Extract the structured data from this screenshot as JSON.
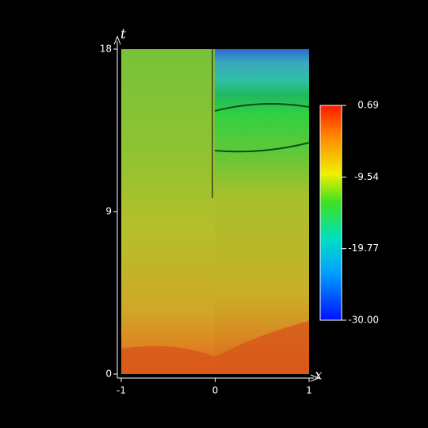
{
  "chart_data": {
    "type": "heatmap",
    "xlabel": "x",
    "ylabel": "t",
    "xlim": [
      -1,
      1
    ],
    "xticks": [
      -1,
      0,
      1
    ],
    "ylim": [
      0,
      18
    ],
    "yticks": [
      0,
      9,
      18
    ],
    "clim": [
      -30,
      0.69
    ],
    "cticks": [
      0.69,
      -9.54,
      -19.77,
      {
        "value": -30,
        "label": "-30.00"
      }
    ]
  }
}
